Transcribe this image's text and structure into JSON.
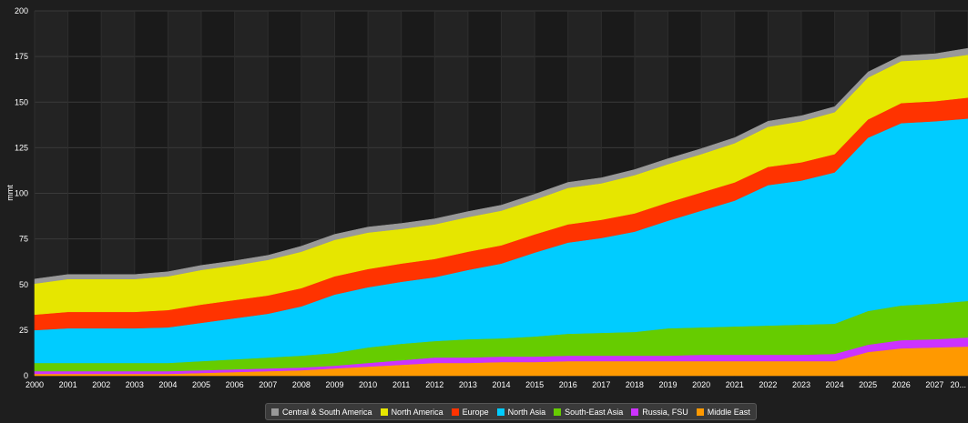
{
  "chart_data": {
    "type": "area",
    "stacked": true,
    "title": "",
    "xlabel": "",
    "ylabel": "mmt",
    "ylim": [
      0,
      200
    ],
    "yticks": [
      "0",
      "25",
      "50",
      "75",
      "100",
      "125",
      "150",
      "175",
      "200"
    ],
    "x": [
      "2000",
      "2001",
      "2002",
      "2003",
      "2004",
      "2005",
      "2006",
      "2007",
      "2008",
      "2009",
      "2010",
      "2011",
      "2012",
      "2013",
      "2014",
      "2015",
      "2016",
      "2017",
      "2018",
      "2019",
      "2020",
      "2021",
      "2022",
      "2023",
      "2024",
      "2025",
      "2026",
      "2027",
      "20..."
    ],
    "grid": true,
    "legend_position": "bottom",
    "series": [
      {
        "name": "Middle East",
        "color": "#ff9900",
        "values": [
          1,
          1,
          1,
          1,
          1,
          1.5,
          2,
          2.5,
          3,
          4,
          5,
          6,
          7,
          7,
          7.5,
          7.5,
          8,
          8,
          8,
          8,
          8,
          8,
          8,
          8,
          8,
          13,
          15,
          15.5,
          16
        ]
      },
      {
        "name": "Russia, FSU",
        "color": "#cc33ff",
        "values": [
          1.5,
          1.5,
          1.5,
          1.5,
          1.5,
          1.5,
          1.5,
          1.5,
          1.5,
          1.5,
          2,
          2.5,
          3,
          3,
          3,
          3,
          3,
          3,
          3,
          3,
          3.5,
          3.5,
          3.5,
          3.5,
          4,
          4,
          4.5,
          4.5,
          5
        ]
      },
      {
        "name": "South-East Asia",
        "color": "#66cc00",
        "values": [
          4.5,
          4.5,
          4.5,
          4.5,
          4.5,
          5,
          5.5,
          6,
          6.5,
          7,
          8.5,
          9,
          9,
          10,
          10,
          11,
          12,
          12.5,
          13,
          15,
          15,
          15.5,
          16,
          16.5,
          16.5,
          18.5,
          19,
          19.5,
          20
        ]
      },
      {
        "name": "North Asia",
        "color": "#00ccff",
        "values": [
          18,
          19,
          19,
          19,
          19.5,
          21,
          22.5,
          24,
          27,
          32,
          33,
          34,
          35,
          38,
          41,
          46,
          50,
          52,
          55,
          59,
          64,
          69,
          77,
          79,
          83,
          95,
          100,
          100,
          100
        ]
      },
      {
        "name": "Europe",
        "color": "#ff3300",
        "values": [
          8.5,
          9,
          9,
          9,
          9.5,
          10,
          10,
          10,
          10,
          10,
          10,
          10,
          10,
          10,
          10,
          10,
          10,
          10,
          10,
          10,
          10,
          10,
          10,
          10,
          10,
          10,
          11,
          11,
          11.5
        ]
      },
      {
        "name": "North America",
        "color": "#e6e600",
        "values": [
          17,
          18,
          18,
          18,
          18.5,
          19,
          19,
          19.5,
          20,
          20,
          20,
          19,
          19,
          19,
          19,
          19,
          20,
          20,
          21,
          21,
          21,
          21.5,
          22,
          22.5,
          23,
          23,
          23,
          23,
          23.5
        ]
      },
      {
        "name": "Central & South America",
        "color": "#999999",
        "values": [
          2.5,
          2.5,
          2.5,
          2.5,
          2.5,
          2.5,
          2.5,
          2.5,
          3,
          3,
          3,
          3,
          3,
          3,
          3,
          3,
          3,
          3,
          3,
          3,
          3,
          3,
          3,
          3,
          3,
          3,
          3,
          3,
          3.5
        ]
      }
    ],
    "legend_order": [
      "Central & South America",
      "North America",
      "Europe",
      "North Asia",
      "South-East Asia",
      "Russia, FSU",
      "Middle East"
    ]
  }
}
